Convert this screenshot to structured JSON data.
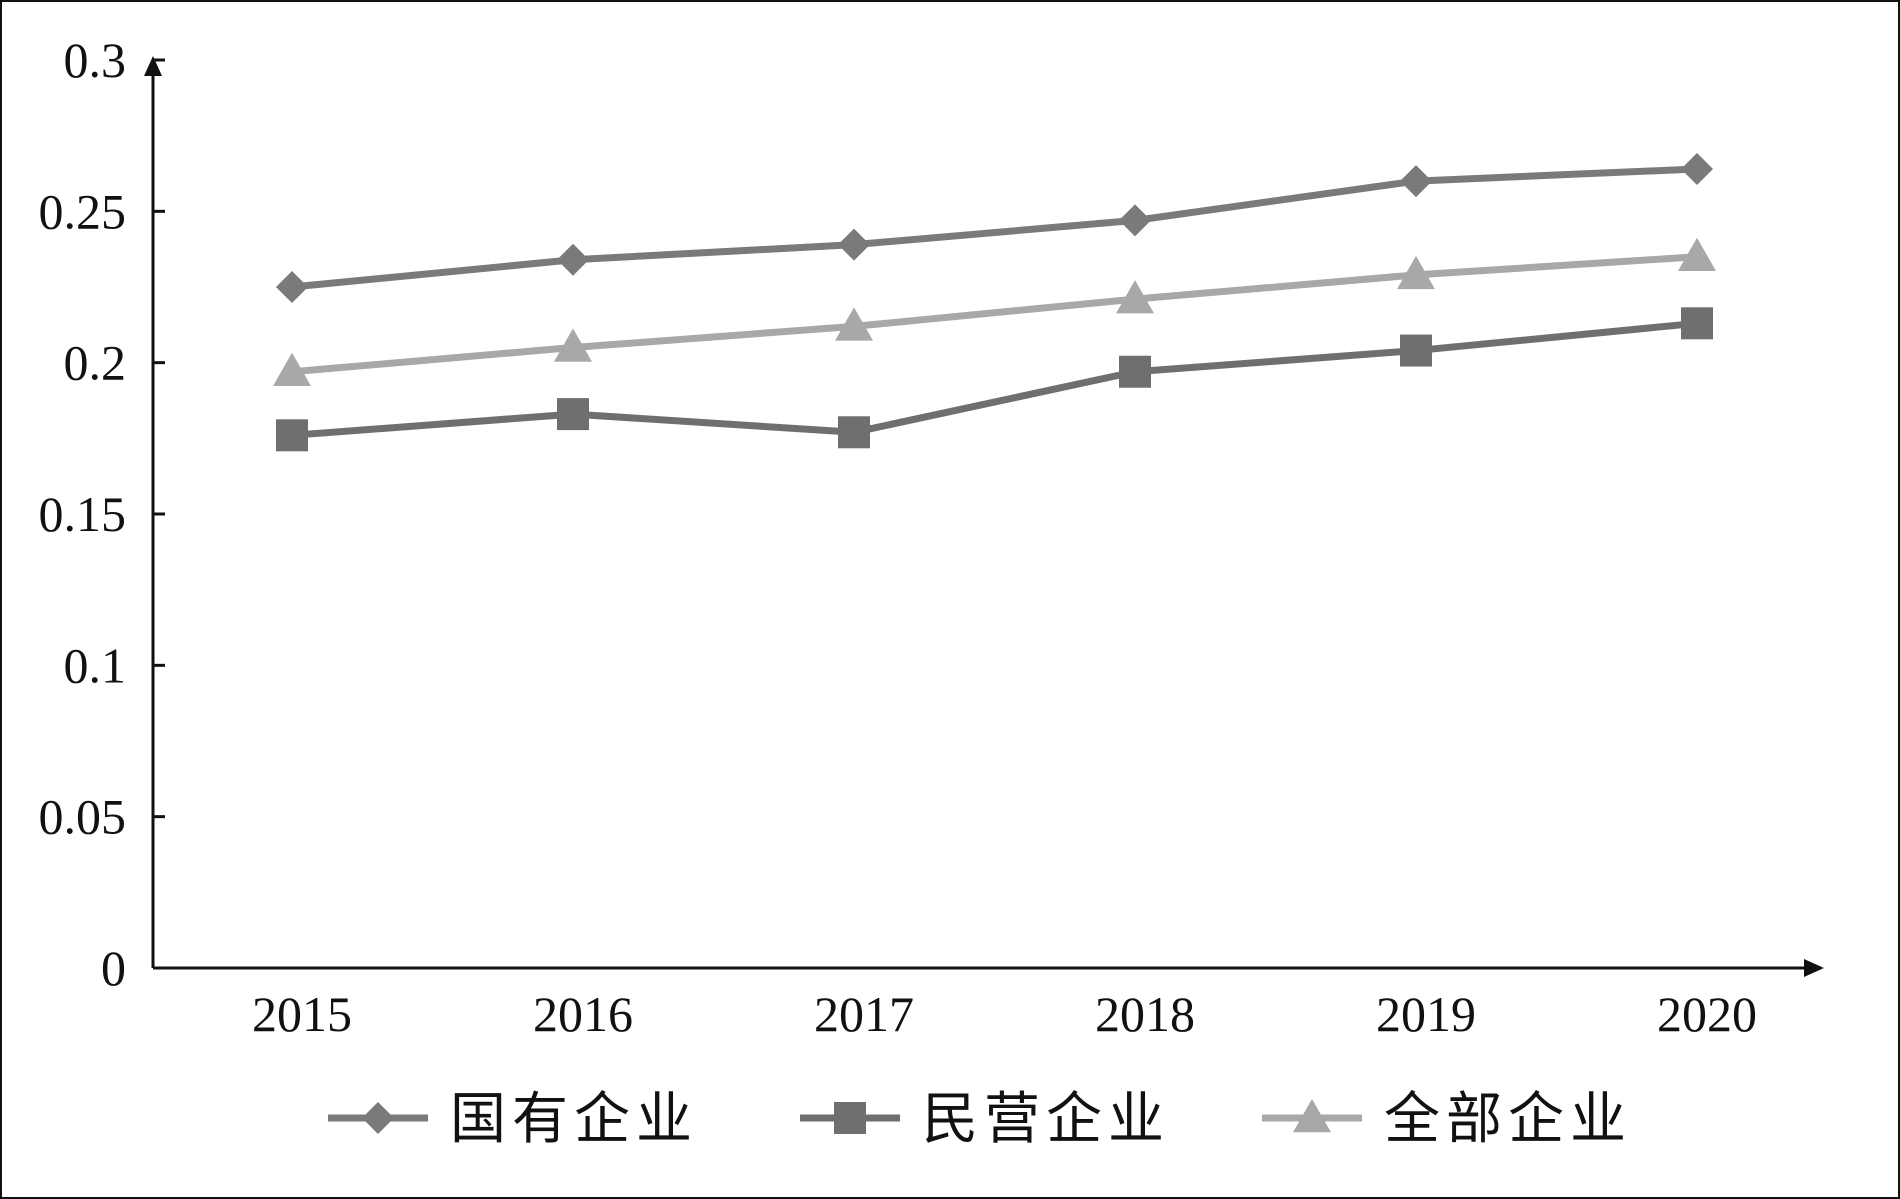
{
  "chart_data": {
    "type": "line",
    "title": "",
    "xlabel": "",
    "ylabel": "",
    "categories": [
      "2015",
      "2016",
      "2017",
      "2018",
      "2019",
      "2020"
    ],
    "ylim": [
      0,
      0.3
    ],
    "y_ticks": [
      "0",
      "0.05",
      "0.1",
      "0.15",
      "0.2",
      "0.25",
      "0.3"
    ],
    "grid": false,
    "legend_position": "bottom",
    "series": [
      {
        "name": "国有企业",
        "marker": "diamond",
        "color": "#7a7a7a",
        "values": [
          0.225,
          0.234,
          0.239,
          0.247,
          0.26,
          0.264
        ]
      },
      {
        "name": "民营企业",
        "marker": "square",
        "color": "#6f6f6f",
        "values": [
          0.176,
          0.183,
          0.177,
          0.197,
          0.204,
          0.213
        ]
      },
      {
        "name": "全部企业",
        "marker": "triangle",
        "color": "#a8a8a8",
        "values": [
          0.197,
          0.205,
          0.212,
          0.221,
          0.229,
          0.235
        ]
      }
    ]
  }
}
